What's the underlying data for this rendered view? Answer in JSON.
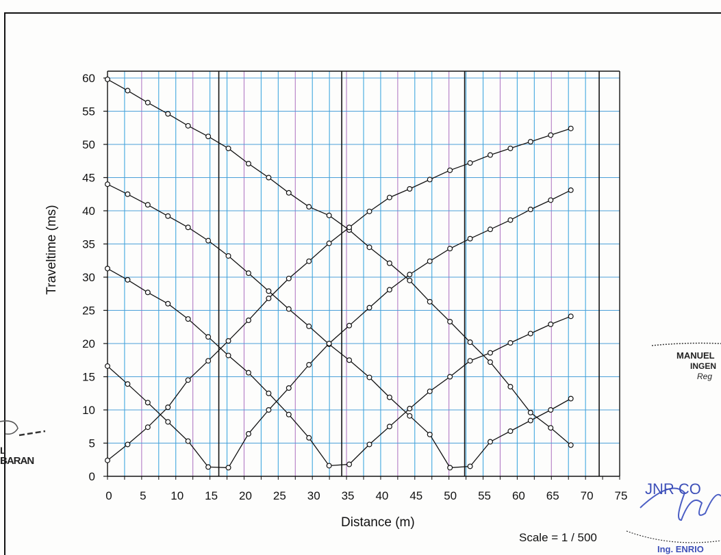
{
  "chart_data": {
    "type": "line",
    "title": "",
    "xlabel": "Distance (m)",
    "ylabel": "Traveltime (ms)",
    "xlim": [
      0,
      75
    ],
    "ylim": [
      0,
      60
    ],
    "x_ticks": [
      0,
      5,
      10,
      15,
      20,
      25,
      30,
      35,
      40,
      45,
      50,
      55,
      60,
      65,
      70,
      75
    ],
    "y_ticks": [
      0,
      5,
      10,
      15,
      20,
      25,
      30,
      35,
      40,
      45,
      50,
      55,
      60
    ],
    "grid": true,
    "vertical_markers": [
      16.3,
      34.3,
      52.3,
      72
    ],
    "series": [
      {
        "x": [
          0,
          2.95,
          5.9,
          8.85,
          11.8,
          14.75,
          17.7,
          20.65,
          23.6,
          26.55,
          29.5,
          32.45,
          35.4,
          38.35,
          41.3,
          44.25,
          47.2,
          50.15,
          53.1,
          56.05,
          59,
          61.95,
          64.9,
          67.85
        ],
        "y": [
          59.8,
          58.1,
          56.3,
          54.6,
          52.8,
          51.2,
          49.4,
          47.1,
          45,
          42.7,
          40.6,
          39.3,
          37.1,
          34.5,
          32.1,
          29.5,
          26.3,
          23.3,
          20.2,
          17.2,
          13.5,
          9.6,
          7.3,
          4.7
        ]
      },
      {
        "x": [
          0,
          2.95,
          5.9,
          8.85,
          11.8,
          14.75,
          17.7,
          20.65,
          23.6,
          26.55,
          29.5,
          32.45,
          35.4,
          38.35,
          41.3,
          44.25,
          47.2,
          50.15,
          53.1,
          56.05,
          59,
          61.95,
          64.9,
          67.85
        ],
        "y": [
          44,
          42.5,
          40.9,
          39.2,
          37.5,
          35.5,
          33.2,
          30.6,
          27.9,
          25.2,
          22.6,
          19.9,
          17.5,
          14.9,
          11.9,
          9.1,
          6.3,
          1.3,
          1.5,
          5.2,
          6.8,
          8.4,
          10,
          11.7
        ]
      },
      {
        "x": [
          0,
          2.95,
          5.9,
          8.85,
          11.8,
          14.75,
          17.7,
          20.65,
          23.6,
          26.55,
          29.5,
          32.45,
          35.4,
          38.35,
          41.3,
          44.25,
          47.2,
          50.15,
          53.1,
          56.05,
          59,
          61.95,
          64.9,
          67.85
        ],
        "y": [
          31.3,
          29.6,
          27.7,
          26,
          23.7,
          21,
          18.2,
          15.6,
          12.5,
          9.3,
          5.8,
          1.6,
          1.8,
          4.8,
          7.5,
          10.2,
          12.8,
          15,
          17.4,
          18.6,
          20.1,
          21.5,
          22.9,
          24.1
        ]
      },
      {
        "x": [
          0,
          2.95,
          5.9,
          8.85,
          11.8,
          14.75,
          17.7,
          20.65,
          23.6,
          26.55,
          29.5,
          32.45,
          35.4,
          38.35,
          41.3,
          44.25,
          47.2,
          50.15,
          53.1,
          56.05,
          59,
          61.95,
          64.9,
          67.85
        ],
        "y": [
          16.6,
          13.9,
          11.1,
          8.2,
          5.3,
          1.4,
          1.3,
          6.4,
          10,
          13.3,
          16.8,
          20,
          22.7,
          25.4,
          28.1,
          30.4,
          32.4,
          34.3,
          35.8,
          37.2,
          38.6,
          40.2,
          41.6,
          43.1
        ]
      },
      {
        "x": [
          0,
          2.95,
          5.9,
          8.85,
          11.8,
          14.75,
          17.7,
          20.65,
          23.6,
          26.55,
          29.5,
          32.45,
          35.4,
          38.35,
          41.3,
          44.25,
          47.2,
          50.15,
          53.1,
          56.05,
          59,
          61.95,
          64.9,
          67.85
        ],
        "y": [
          2.4,
          4.8,
          7.4,
          10.4,
          14.5,
          17.4,
          20.4,
          23.5,
          26.8,
          29.8,
          32.4,
          35.1,
          37.5,
          39.9,
          42,
          43.3,
          44.7,
          46.1,
          47.2,
          48.4,
          49.4,
          50.4,
          51.4,
          52.4
        ]
      }
    ]
  },
  "annotations": {
    "scale": "Scale = 1 / 500",
    "stamp_right_1": "MANUEL",
    "stamp_right_2": "INGEN",
    "stamp_right_3": "Reg",
    "stamp_left_1": "L",
    "stamp_left_2": "BARAN",
    "stamp_bottom_1": "JNR CO",
    "stamp_bottom_2": "Ing. ENRIO"
  },
  "colors": {
    "grid_blue": "#3fa7df",
    "grid_purple": "#b27ac4",
    "grid_horizontal": "#4a9fd8",
    "axis": "#111111",
    "series": "#111111"
  }
}
